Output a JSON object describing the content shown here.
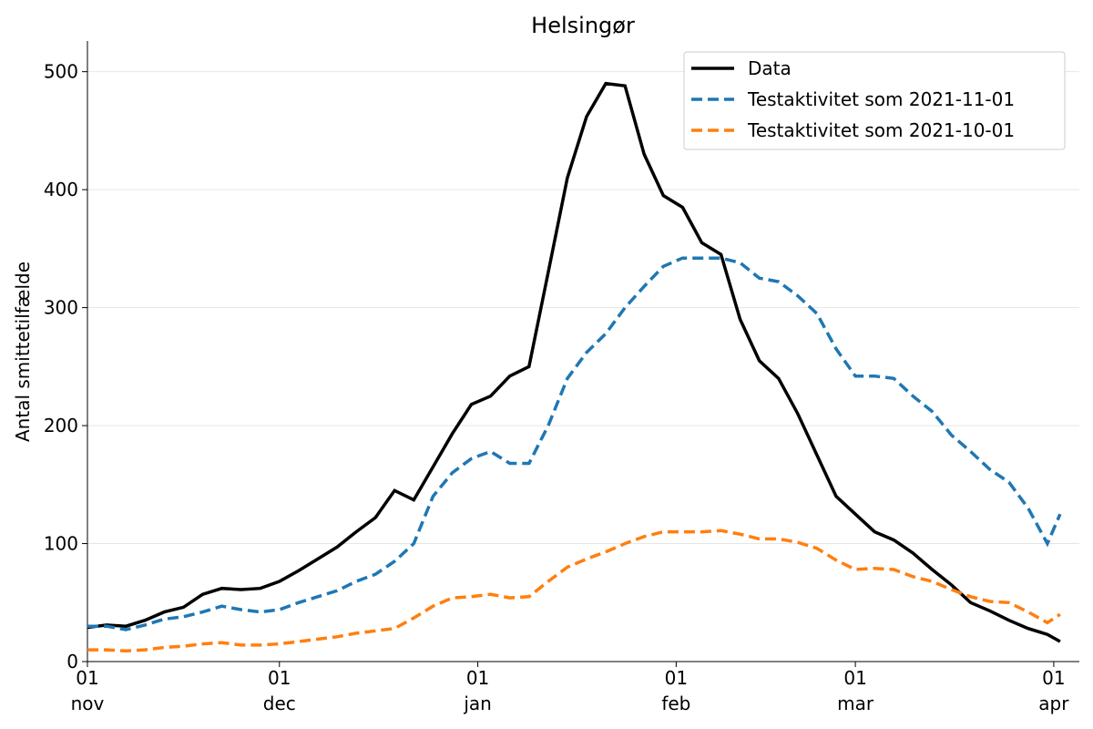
{
  "chart_data": {
    "type": "line",
    "title": "Helsingør",
    "ylabel": "Antal smittetilfælde",
    "x": [
      0,
      3,
      6,
      9,
      12,
      15,
      18,
      21,
      24,
      27,
      30,
      33,
      36,
      39,
      42,
      45,
      48,
      51,
      54,
      57,
      60,
      63,
      66,
      69,
      72,
      75,
      78,
      81,
      84,
      87,
      90,
      93,
      96,
      99,
      102,
      105,
      108,
      111,
      114,
      117,
      120,
      123,
      126,
      129,
      132,
      135,
      138,
      141,
      144,
      147,
      150,
      152
    ],
    "series": [
      {
        "name": "Data",
        "color": "#000000",
        "dash": false,
        "values": [
          29,
          31,
          30,
          35,
          42,
          46,
          57,
          62,
          61,
          62,
          68,
          77,
          87,
          97,
          110,
          122,
          145,
          137,
          165,
          193,
          218,
          225,
          242,
          250,
          330,
          410,
          462,
          490,
          488,
          430,
          395,
          385,
          355,
          345,
          290,
          255,
          240,
          210,
          175,
          140,
          125,
          110,
          103,
          92,
          78,
          65,
          50,
          43,
          35,
          28,
          23,
          17
        ]
      },
      {
        "name": "Testaktivitet som 2021-11-01",
        "color": "#1f77b4",
        "dash": true,
        "values": [
          30,
          30,
          27,
          31,
          36,
          38,
          42,
          47,
          44,
          42,
          44,
          50,
          55,
          60,
          68,
          74,
          85,
          100,
          140,
          160,
          172,
          178,
          168,
          168,
          200,
          240,
          262,
          278,
          300,
          318,
          335,
          342,
          342,
          342,
          338,
          325,
          322,
          310,
          295,
          265,
          242,
          242,
          240,
          225,
          212,
          192,
          178,
          163,
          152,
          130,
          100,
          125
        ]
      },
      {
        "name": "Testaktivitet som 2021-10-01",
        "color": "#ff7f0e",
        "dash": true,
        "values": [
          10,
          10,
          9,
          10,
          12,
          13,
          15,
          16,
          14,
          14,
          15,
          17,
          19,
          21,
          24,
          26,
          28,
          37,
          47,
          54,
          55,
          57,
          54,
          55,
          68,
          80,
          87,
          93,
          100,
          106,
          110,
          110,
          110,
          111,
          108,
          104,
          104,
          101,
          96,
          86,
          78,
          79,
          78,
          72,
          68,
          61,
          55,
          51,
          50,
          42,
          33,
          40
        ]
      }
    ],
    "xlim": [
      0,
      155
    ],
    "xticks": [
      {
        "value": 0,
        "label": "01\nnov"
      },
      {
        "value": 30,
        "label": "01\ndec"
      },
      {
        "value": 61,
        "label": "01\njan"
      },
      {
        "value": 92,
        "label": "01\nfeb"
      },
      {
        "value": 120,
        "label": "01\nmar"
      },
      {
        "value": 151,
        "label": "01\napr"
      }
    ],
    "ylim": [
      0,
      526
    ],
    "yticks": [
      0,
      100,
      200,
      300,
      400,
      500
    ],
    "grid": true,
    "legend": "upper right"
  }
}
